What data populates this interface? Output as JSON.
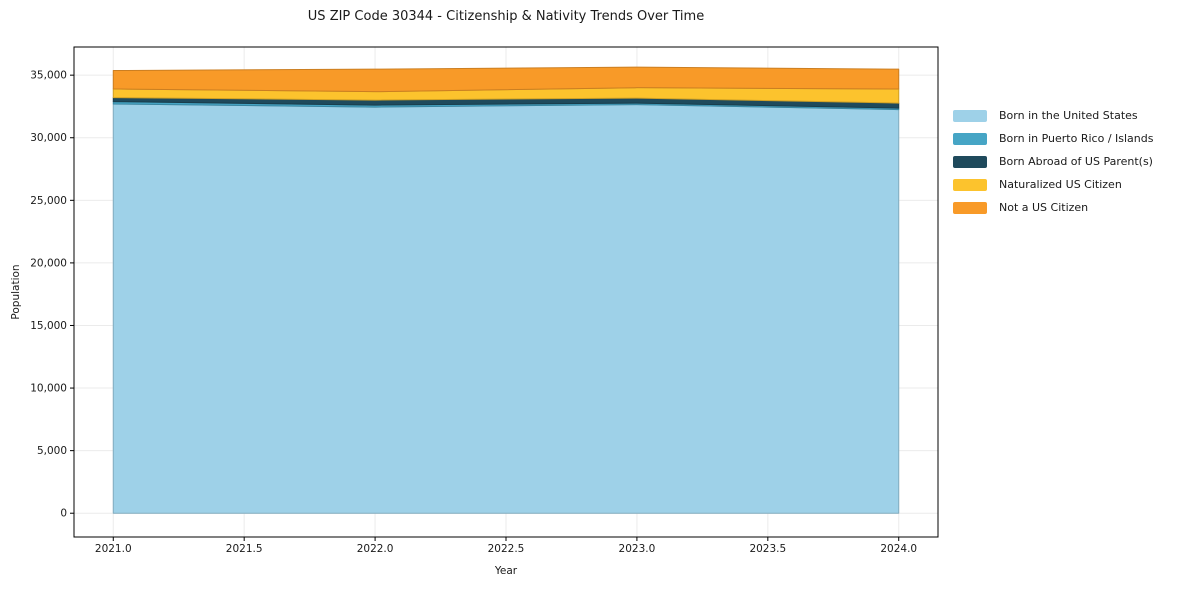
{
  "chart_data": {
    "type": "area",
    "stacked": true,
    "title": "US ZIP Code 30344 - Citizenship & Nativity Trends Over Time",
    "xlabel": "Year",
    "ylabel": "Population",
    "x": [
      2021,
      2022,
      2023,
      2024
    ],
    "series": [
      {
        "name": "Born in the United States",
        "color": "#9ed1e8",
        "values": [
          32700,
          32450,
          32650,
          32250
        ]
      },
      {
        "name": "Born in Puerto Rico / Islands",
        "color": "#46a5c5",
        "values": [
          190,
          160,
          120,
          120
        ]
      },
      {
        "name": "Born Abroad of US Parent(s)",
        "color": "#1f4a5c",
        "values": [
          320,
          400,
          400,
          400
        ]
      },
      {
        "name": "Naturalized US Citizen",
        "color": "#fcc32d",
        "values": [
          690,
          670,
          830,
          1120
        ]
      },
      {
        "name": "Not a US Citizen",
        "color": "#f89a28",
        "values": [
          1470,
          1800,
          1640,
          1590
        ]
      }
    ],
    "totals": [
      35370,
      35480,
      35640,
      35480
    ],
    "xlim": [
      2020.85,
      2024.15
    ],
    "ylim": [
      -1900,
      37250
    ],
    "xticks": [
      "2021.0",
      "2021.5",
      "2022.0",
      "2022.5",
      "2023.0",
      "2023.5",
      "2024.0"
    ],
    "xtick_values": [
      2021.0,
      2021.5,
      2022.0,
      2022.5,
      2023.0,
      2023.5,
      2024.0
    ],
    "yticks": [
      "0",
      "5,000",
      "10,000",
      "15,000",
      "20,000",
      "25,000",
      "30,000",
      "35,000"
    ],
    "ytick_values": [
      0,
      5000,
      10000,
      15000,
      20000,
      25000,
      30000,
      35000
    ],
    "grid": true,
    "legend_position": "right-outside",
    "colors": {
      "background": "#ffffff",
      "axis": "#000000",
      "grid": "#ebebeb",
      "text": "#1a1a1a"
    }
  }
}
